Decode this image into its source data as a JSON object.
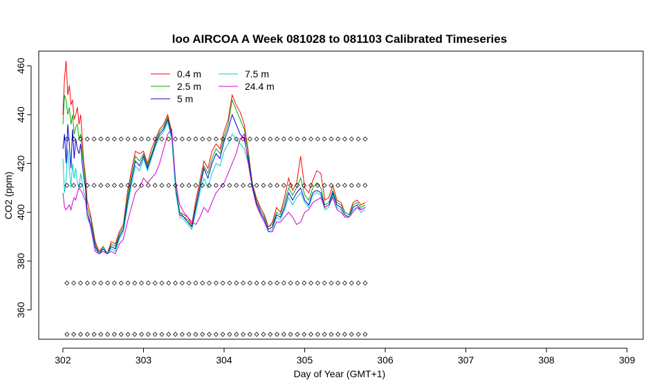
{
  "chart_data": {
    "type": "line",
    "title": "loo AIRCOA A  Week 081028 to 081103  Calibrated Timeseries",
    "xlabel": "Day of Year (GMT+1)",
    "ylabel": "CO2 (ppm)",
    "xlim": [
      301.7,
      309.2
    ],
    "ylim": [
      348,
      466
    ],
    "x_ticks": [
      302,
      303,
      304,
      305,
      306,
      307,
      308,
      309
    ],
    "y_ticks": [
      360,
      380,
      400,
      420,
      440,
      460
    ],
    "legend_position": "top-left",
    "series": [
      {
        "name": "0.4 m",
        "color": "#ff0000",
        "x": [
          302.0,
          302.02,
          302.04,
          302.06,
          302.08,
          302.1,
          302.12,
          302.14,
          302.16,
          302.18,
          302.2,
          302.22,
          302.24,
          302.26,
          302.28,
          302.3,
          302.35,
          302.4,
          302.45,
          302.5,
          302.55,
          302.6,
          302.65,
          302.7,
          302.75,
          302.8,
          302.85,
          302.9,
          302.95,
          303.0,
          303.05,
          303.1,
          303.15,
          303.2,
          303.25,
          303.3,
          303.35,
          303.4,
          303.45,
          303.5,
          303.55,
          303.6,
          303.65,
          303.7,
          303.75,
          303.8,
          303.85,
          303.9,
          303.95,
          304.0,
          304.05,
          304.1,
          304.15,
          304.2,
          304.25,
          304.3,
          304.35,
          304.4,
          304.45,
          304.5,
          304.55,
          304.6,
          304.65,
          304.7,
          304.75,
          304.8,
          304.85,
          304.9,
          304.95,
          305.0,
          305.05,
          305.1,
          305.15,
          305.2,
          305.25,
          305.3,
          305.35,
          305.4,
          305.45,
          305.5,
          305.55,
          305.6,
          305.65,
          305.7,
          305.75
        ],
        "y": [
          440,
          455,
          462,
          448,
          452,
          444,
          446,
          438,
          440,
          443,
          436,
          440,
          430,
          420,
          415,
          405,
          398,
          388,
          384,
          386,
          383,
          388,
          387,
          392,
          395,
          408,
          417,
          425,
          424,
          425,
          420,
          426,
          430,
          434,
          436,
          440,
          433,
          410,
          400,
          399,
          398,
          395,
          405,
          413,
          421,
          418,
          425,
          428,
          426,
          433,
          438,
          448,
          444,
          441,
          436,
          425,
          412,
          406,
          402,
          399,
          394,
          396,
          402,
          400,
          406,
          414,
          409,
          412,
          423,
          410,
          408,
          413,
          417,
          416,
          405,
          406,
          411,
          405,
          404,
          400,
          399,
          404,
          405,
          403,
          404
        ]
      },
      {
        "name": "2.5 m",
        "color": "#00aa00",
        "x": [
          302.0,
          302.02,
          302.04,
          302.06,
          302.08,
          302.1,
          302.12,
          302.14,
          302.16,
          302.18,
          302.2,
          302.22,
          302.24,
          302.26,
          302.28,
          302.3,
          302.35,
          302.4,
          302.45,
          302.5,
          302.55,
          302.6,
          302.65,
          302.7,
          302.75,
          302.8,
          302.85,
          302.9,
          302.95,
          303.0,
          303.05,
          303.1,
          303.15,
          303.2,
          303.25,
          303.3,
          303.35,
          303.4,
          303.45,
          303.5,
          303.55,
          303.6,
          303.65,
          303.7,
          303.75,
          303.8,
          303.85,
          303.9,
          303.95,
          304.0,
          304.05,
          304.1,
          304.15,
          304.2,
          304.25,
          304.3,
          304.35,
          304.4,
          304.45,
          304.5,
          304.55,
          304.6,
          304.65,
          304.7,
          304.75,
          304.8,
          304.85,
          304.9,
          304.95,
          305.0,
          305.05,
          305.1,
          305.15,
          305.2,
          305.25,
          305.3,
          305.35,
          305.4,
          305.45,
          305.5,
          305.55,
          305.6,
          305.65,
          305.7,
          305.75
        ],
        "y": [
          436,
          448,
          446,
          440,
          443,
          436,
          440,
          432,
          435,
          436,
          430,
          432,
          425,
          418,
          412,
          402,
          397,
          387,
          383,
          386,
          383,
          387,
          386,
          391,
          394,
          406,
          415,
          423,
          421,
          424,
          419,
          424,
          429,
          433,
          435,
          439,
          432,
          410,
          400,
          398,
          397,
          394,
          403,
          411,
          419,
          416,
          422,
          426,
          424,
          431,
          436,
          446,
          442,
          438,
          434,
          424,
          412,
          405,
          401,
          398,
          394,
          395,
          400,
          399,
          404,
          410,
          407,
          410,
          414,
          407,
          405,
          410,
          412,
          410,
          403,
          404,
          409,
          404,
          403,
          400,
          399,
          403,
          404,
          402,
          403
        ]
      },
      {
        "name": "5 m",
        "color": "#0000cc",
        "x": [
          302.0,
          302.02,
          302.04,
          302.06,
          302.08,
          302.1,
          302.12,
          302.14,
          302.16,
          302.18,
          302.2,
          302.22,
          302.24,
          302.26,
          302.28,
          302.3,
          302.35,
          302.4,
          302.45,
          302.5,
          302.55,
          302.6,
          302.65,
          302.7,
          302.75,
          302.8,
          302.85,
          302.9,
          302.95,
          303.0,
          303.05,
          303.1,
          303.15,
          303.2,
          303.25,
          303.3,
          303.35,
          303.4,
          303.45,
          303.5,
          303.55,
          303.6,
          303.65,
          303.7,
          303.75,
          303.8,
          303.85,
          303.9,
          303.95,
          304.0,
          304.05,
          304.1,
          304.15,
          304.2,
          304.25,
          304.3,
          304.35,
          304.4,
          304.45,
          304.5,
          304.55,
          304.6,
          304.65,
          304.7,
          304.75,
          304.8,
          304.85,
          304.9,
          304.95,
          305.0,
          305.05,
          305.1,
          305.15,
          305.2,
          305.25,
          305.3,
          305.35,
          305.4,
          305.45,
          305.5,
          305.55,
          305.6,
          305.65,
          305.7,
          305.75
        ],
        "y": [
          426,
          432,
          420,
          436,
          428,
          418,
          434,
          422,
          430,
          426,
          424,
          428,
          420,
          414,
          410,
          400,
          395,
          386,
          383,
          385,
          383,
          386,
          385,
          390,
          393,
          404,
          413,
          421,
          419,
          423,
          418,
          423,
          428,
          432,
          434,
          438,
          431,
          409,
          399,
          398,
          396,
          394,
          402,
          410,
          418,
          414,
          420,
          424,
          422,
          429,
          434,
          440,
          436,
          432,
          430,
          422,
          411,
          404,
          400,
          397,
          393,
          394,
          399,
          398,
          402,
          408,
          405,
          408,
          410,
          405,
          403,
          408,
          409,
          408,
          402,
          403,
          408,
          403,
          402,
          399,
          398,
          402,
          403,
          401,
          402
        ]
      },
      {
        "name": "7.5 m",
        "color": "#00cccc",
        "x": [
          302.0,
          302.02,
          302.04,
          302.06,
          302.08,
          302.1,
          302.12,
          302.14,
          302.16,
          302.18,
          302.2,
          302.22,
          302.24,
          302.26,
          302.28,
          302.3,
          302.35,
          302.4,
          302.45,
          302.5,
          302.55,
          302.6,
          302.65,
          302.7,
          302.75,
          302.8,
          302.85,
          302.9,
          302.95,
          303.0,
          303.05,
          303.1,
          303.15,
          303.2,
          303.25,
          303.3,
          303.35,
          303.4,
          303.45,
          303.5,
          303.55,
          303.6,
          303.65,
          303.7,
          303.75,
          303.8,
          303.85,
          303.9,
          303.95,
          304.0,
          304.05,
          304.1,
          304.15,
          304.2,
          304.25,
          304.3,
          304.35,
          304.4,
          304.45,
          304.5,
          304.55,
          304.6,
          304.65,
          304.7,
          304.75,
          304.8,
          304.85,
          304.9,
          304.95,
          305.0,
          305.05,
          305.1,
          305.15,
          305.2,
          305.25,
          305.3,
          305.35,
          305.4,
          305.45,
          305.5,
          305.55,
          305.6,
          305.65,
          305.7,
          305.75
        ],
        "y": [
          422,
          408,
          414,
          426,
          418,
          410,
          420,
          414,
          418,
          412,
          410,
          416,
          412,
          408,
          406,
          398,
          394,
          385,
          383,
          384,
          383,
          385,
          384,
          389,
          392,
          402,
          411,
          419,
          417,
          422,
          417,
          422,
          427,
          431,
          433,
          437,
          430,
          408,
          398,
          397,
          395,
          393,
          400,
          408,
          414,
          410,
          416,
          420,
          419,
          425,
          428,
          432,
          430,
          428,
          426,
          420,
          410,
          403,
          399,
          396,
          392,
          393,
          398,
          397,
          401,
          406,
          403,
          406,
          408,
          404,
          402,
          407,
          408,
          407,
          401,
          402,
          407,
          402,
          401,
          398,
          398,
          401,
          402,
          400,
          401
        ]
      },
      {
        "name": "24.4 m",
        "color": "#cc00cc",
        "x": [
          302.0,
          302.02,
          302.04,
          302.06,
          302.08,
          302.1,
          302.12,
          302.14,
          302.16,
          302.18,
          302.2,
          302.22,
          302.24,
          302.26,
          302.28,
          302.3,
          302.35,
          302.4,
          302.45,
          302.5,
          302.55,
          302.6,
          302.65,
          302.7,
          302.75,
          302.8,
          302.85,
          302.9,
          302.95,
          303.0,
          303.05,
          303.1,
          303.15,
          303.2,
          303.25,
          303.3,
          303.35,
          303.4,
          303.45,
          303.5,
          303.55,
          303.6,
          303.65,
          303.7,
          303.75,
          303.8,
          303.85,
          303.9,
          303.95,
          304.0,
          304.05,
          304.1,
          304.15,
          304.2,
          304.25,
          304.3,
          304.35,
          304.4,
          304.45,
          304.5,
          304.55,
          304.6,
          304.65,
          304.7,
          304.75,
          304.8,
          304.85,
          304.9,
          304.95,
          305.0,
          305.05,
          305.1,
          305.15,
          305.2,
          305.25,
          305.3,
          305.35,
          305.4,
          305.45,
          305.5,
          305.55,
          305.6,
          305.65,
          305.7,
          305.75
        ],
        "y": [
          408,
          402,
          401,
          402,
          403,
          401,
          404,
          406,
          405,
          408,
          410,
          409,
          408,
          406,
          405,
          400,
          393,
          384,
          383,
          384,
          383,
          384,
          383,
          387,
          389,
          396,
          402,
          408,
          410,
          414,
          412,
          414,
          416,
          420,
          426,
          432,
          434,
          412,
          403,
          400,
          398,
          396,
          395,
          398,
          402,
          400,
          404,
          408,
          410,
          412,
          416,
          420,
          424,
          430,
          432,
          420,
          410,
          403,
          399,
          396,
          392,
          392,
          396,
          396,
          398,
          400,
          398,
          395,
          396,
          400,
          401,
          404,
          405,
          406,
          402,
          403,
          406,
          401,
          400,
          398,
          398,
          400,
          402,
          401,
          402
        ]
      }
    ],
    "marker_rows": {
      "style": "open-diamond",
      "y": [
        430,
        411,
        371,
        350
      ],
      "x_start": 302.05,
      "x_end": 305.75,
      "count": 45
    }
  }
}
